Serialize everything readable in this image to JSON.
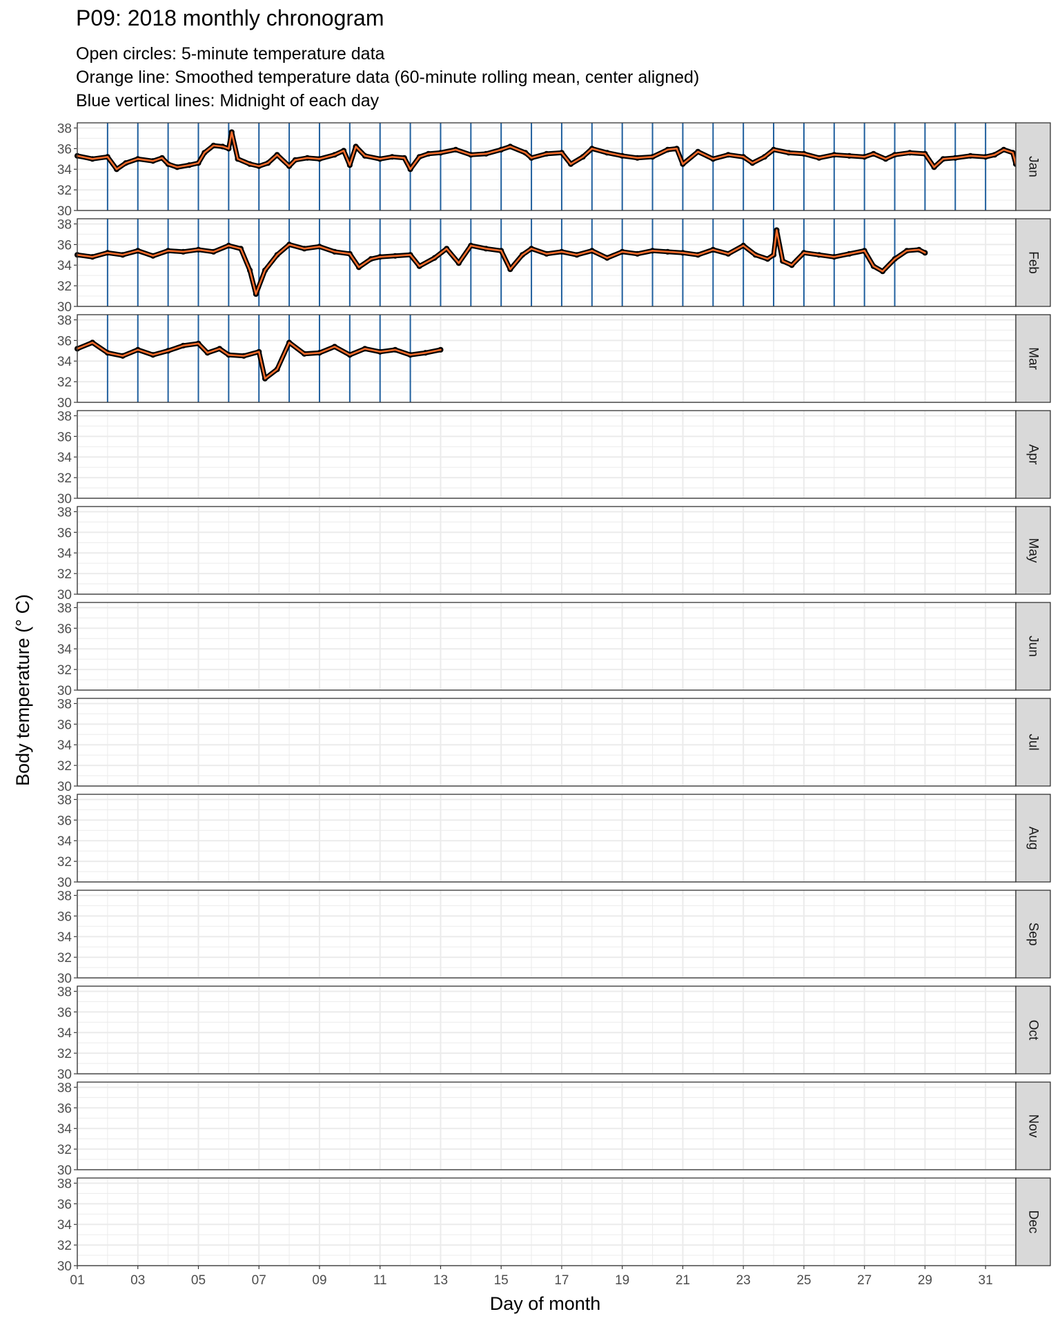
{
  "chart_data": {
    "type": "line",
    "title": "P09: 2018 monthly chronogram",
    "subtitle": [
      "Open circles: 5-minute temperature data",
      "Orange line: Smoothed temperature data (60-minute rolling mean, center aligned)",
      "Blue vertical lines: Midnight of each day"
    ],
    "xlabel": "Day of month",
    "ylabel": "Body temperature (° C)",
    "xlim": [
      1,
      32
    ],
    "ylim": [
      30,
      38.5
    ],
    "x_ticks": [
      "01",
      "03",
      "05",
      "07",
      "09",
      "11",
      "13",
      "15",
      "17",
      "19",
      "21",
      "23",
      "25",
      "27",
      "29",
      "31"
    ],
    "y_ticks": [
      30,
      32,
      34,
      36,
      38
    ],
    "grid": true,
    "facets": [
      "Jan",
      "Feb",
      "Mar",
      "Apr",
      "May",
      "Jun",
      "Jul",
      "Aug",
      "Sep",
      "Oct",
      "Nov",
      "Dec"
    ],
    "colors": {
      "points": "#000000",
      "smooth": "#f26b2a",
      "midnight": "#1f5f9e",
      "strip": "#d9d9d9",
      "grid": "#ebebeb"
    },
    "midnight_lines": {
      "Jan": [
        2,
        3,
        4,
        5,
        6,
        7,
        8,
        9,
        10,
        11,
        12,
        13,
        14,
        15,
        16,
        17,
        18,
        19,
        20,
        21,
        22,
        23,
        24,
        25,
        26,
        27,
        28,
        29,
        30,
        31
      ],
      "Feb": [
        2,
        3,
        4,
        5,
        6,
        7,
        8,
        9,
        10,
        11,
        12,
        13,
        14,
        15,
        16,
        17,
        18,
        19,
        20,
        21,
        22,
        23,
        24,
        25,
        26,
        27,
        28
      ],
      "Mar": [
        2,
        3,
        4,
        5,
        6,
        7,
        8,
        9,
        10,
        11,
        12
      ],
      "Apr": [],
      "May": [],
      "Jun": [],
      "Jul": [],
      "Aug": [],
      "Sep": [],
      "Oct": [],
      "Nov": [],
      "Dec": []
    },
    "series": [
      {
        "facet": "Jan",
        "x": [
          1.0,
          1.5,
          2.0,
          2.3,
          2.6,
          3.0,
          3.5,
          3.8,
          4.0,
          4.3,
          4.7,
          5.0,
          5.2,
          5.5,
          5.8,
          6.0,
          6.1,
          6.3,
          6.7,
          7.0,
          7.3,
          7.6,
          8.0,
          8.2,
          8.6,
          9.0,
          9.5,
          9.8,
          10.0,
          10.2,
          10.5,
          11.0,
          11.4,
          11.8,
          12.0,
          12.3,
          12.6,
          13.0,
          13.5,
          14.0,
          14.5,
          15.0,
          15.3,
          15.8,
          16.0,
          16.5,
          17.0,
          17.3,
          17.7,
          18.0,
          18.5,
          19.0,
          19.5,
          20.0,
          20.5,
          20.8,
          21.0,
          21.5,
          22.0,
          22.5,
          23.0,
          23.3,
          23.7,
          24.0,
          24.5,
          25.0,
          25.5,
          26.0,
          26.5,
          27.0,
          27.3,
          27.7,
          28.0,
          28.5,
          29.0,
          29.3,
          29.6,
          30.0,
          30.5,
          31.0,
          31.3,
          31.6,
          31.9,
          32.0
        ],
        "y": [
          35.3,
          35.0,
          35.2,
          34.0,
          34.6,
          35.0,
          34.8,
          35.1,
          34.5,
          34.2,
          34.4,
          34.6,
          35.6,
          36.3,
          36.2,
          36.0,
          37.6,
          35.0,
          34.5,
          34.3,
          34.6,
          35.4,
          34.3,
          34.9,
          35.1,
          35.0,
          35.4,
          35.8,
          34.4,
          36.2,
          35.3,
          35.0,
          35.2,
          35.1,
          34.0,
          35.2,
          35.5,
          35.6,
          35.9,
          35.4,
          35.5,
          35.9,
          36.2,
          35.6,
          35.1,
          35.5,
          35.6,
          34.5,
          35.2,
          36.0,
          35.6,
          35.3,
          35.1,
          35.2,
          35.9,
          36.0,
          34.5,
          35.7,
          35.0,
          35.4,
          35.2,
          34.6,
          35.2,
          35.9,
          35.6,
          35.5,
          35.1,
          35.4,
          35.3,
          35.2,
          35.5,
          35.0,
          35.4,
          35.6,
          35.5,
          34.2,
          35.0,
          35.1,
          35.3,
          35.2,
          35.4,
          35.9,
          35.6,
          34.5
        ]
      },
      {
        "facet": "Feb",
        "x": [
          1.0,
          1.5,
          2.0,
          2.5,
          3.0,
          3.5,
          4.0,
          4.5,
          5.0,
          5.5,
          6.0,
          6.4,
          6.7,
          6.9,
          7.2,
          7.6,
          8.0,
          8.5,
          9.0,
          9.5,
          10.0,
          10.3,
          10.7,
          11.0,
          11.5,
          12.0,
          12.3,
          12.8,
          13.2,
          13.6,
          14.0,
          14.5,
          15.0,
          15.3,
          15.7,
          16.0,
          16.5,
          17.0,
          17.5,
          18.0,
          18.5,
          19.0,
          19.5,
          20.0,
          20.5,
          21.0,
          21.5,
          22.0,
          22.5,
          23.0,
          23.4,
          23.8,
          24.0,
          24.1,
          24.3,
          24.6,
          25.0,
          25.5,
          26.0,
          26.5,
          27.0,
          27.3,
          27.6,
          28.0,
          28.4,
          28.8,
          29.0
        ],
        "y": [
          35.0,
          34.8,
          35.2,
          35.0,
          35.4,
          34.9,
          35.4,
          35.3,
          35.5,
          35.3,
          35.9,
          35.6,
          33.5,
          31.2,
          33.5,
          35.0,
          36.0,
          35.6,
          35.8,
          35.3,
          35.1,
          33.8,
          34.6,
          34.8,
          34.9,
          35.0,
          33.9,
          34.7,
          35.6,
          34.2,
          35.9,
          35.6,
          35.4,
          33.6,
          35.0,
          35.6,
          35.1,
          35.3,
          35.0,
          35.4,
          34.7,
          35.3,
          35.1,
          35.4,
          35.3,
          35.2,
          35.0,
          35.5,
          35.1,
          35.9,
          35.0,
          34.6,
          35.0,
          37.4,
          34.4,
          34.0,
          35.2,
          35.0,
          34.8,
          35.1,
          35.4,
          33.9,
          33.4,
          34.6,
          35.4,
          35.5,
          35.2
        ]
      },
      {
        "facet": "Mar",
        "x": [
          1.0,
          1.5,
          2.0,
          2.5,
          3.0,
          3.5,
          4.0,
          4.5,
          5.0,
          5.3,
          5.7,
          6.0,
          6.5,
          7.0,
          7.2,
          7.6,
          8.0,
          8.5,
          9.0,
          9.5,
          10.0,
          10.5,
          11.0,
          11.5,
          12.0,
          12.5,
          13.0
        ],
        "y": [
          35.2,
          35.8,
          34.8,
          34.5,
          35.1,
          34.6,
          35.0,
          35.5,
          35.7,
          34.8,
          35.2,
          34.6,
          34.5,
          34.9,
          32.3,
          33.2,
          35.8,
          34.7,
          34.8,
          35.4,
          34.6,
          35.2,
          34.9,
          35.1,
          34.6,
          34.8,
          35.1
        ]
      }
    ]
  }
}
